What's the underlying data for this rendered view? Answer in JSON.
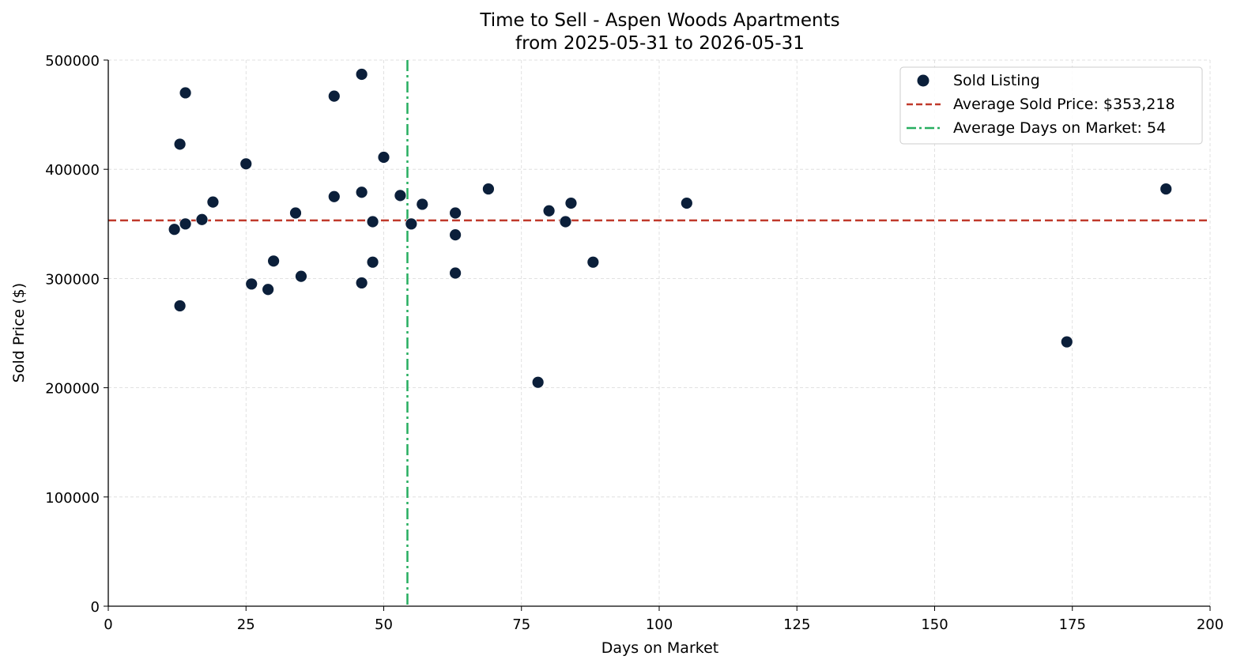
{
  "chart_data": {
    "type": "scatter",
    "title": "Time to Sell - Aspen Woods Apartments",
    "subtitle": "from 2025-05-31 to 2026-05-31",
    "xlabel": "Days on Market",
    "ylabel": "Sold Price ($)",
    "xlim": [
      0,
      200
    ],
    "ylim": [
      0,
      500000
    ],
    "x_ticks": [
      0,
      25,
      50,
      75,
      100,
      125,
      150,
      175,
      200
    ],
    "y_ticks": [
      0,
      100000,
      200000,
      300000,
      400000,
      500000
    ],
    "grid": true,
    "legend_position": "top-right",
    "series": [
      {
        "name": "Sold Listing",
        "color": "#0b1f3a",
        "points": [
          {
            "x": 12,
            "y": 345000
          },
          {
            "x": 13,
            "y": 423000
          },
          {
            "x": 13,
            "y": 275000
          },
          {
            "x": 14,
            "y": 470000
          },
          {
            "x": 14,
            "y": 350000
          },
          {
            "x": 17,
            "y": 354000
          },
          {
            "x": 19,
            "y": 370000
          },
          {
            "x": 25,
            "y": 405000
          },
          {
            "x": 26,
            "y": 295000
          },
          {
            "x": 29,
            "y": 290000
          },
          {
            "x": 30,
            "y": 316000
          },
          {
            "x": 34,
            "y": 360000
          },
          {
            "x": 35,
            "y": 302000
          },
          {
            "x": 41,
            "y": 467000
          },
          {
            "x": 41,
            "y": 375000
          },
          {
            "x": 46,
            "y": 487000
          },
          {
            "x": 46,
            "y": 379000
          },
          {
            "x": 46,
            "y": 296000
          },
          {
            "x": 48,
            "y": 352000
          },
          {
            "x": 48,
            "y": 315000
          },
          {
            "x": 50,
            "y": 411000
          },
          {
            "x": 53,
            "y": 376000
          },
          {
            "x": 55,
            "y": 350000
          },
          {
            "x": 57,
            "y": 368000
          },
          {
            "x": 63,
            "y": 360000
          },
          {
            "x": 63,
            "y": 340000
          },
          {
            "x": 63,
            "y": 305000
          },
          {
            "x": 69,
            "y": 382000
          },
          {
            "x": 78,
            "y": 205000
          },
          {
            "x": 80,
            "y": 362000
          },
          {
            "x": 83,
            "y": 352000
          },
          {
            "x": 84,
            "y": 369000
          },
          {
            "x": 88,
            "y": 315000
          },
          {
            "x": 105,
            "y": 369000
          },
          {
            "x": 174,
            "y": 242000
          },
          {
            "x": 192,
            "y": 382000
          }
        ]
      }
    ],
    "reference_lines": [
      {
        "name": "Average Sold Price: $353,218",
        "orientation": "horizontal",
        "value": 353218,
        "color": "#c0392b",
        "style": "dashed"
      },
      {
        "name": "Average Days on Market: 54",
        "orientation": "vertical",
        "value": 54.3,
        "color": "#27ae60",
        "style": "dashdot"
      }
    ]
  }
}
